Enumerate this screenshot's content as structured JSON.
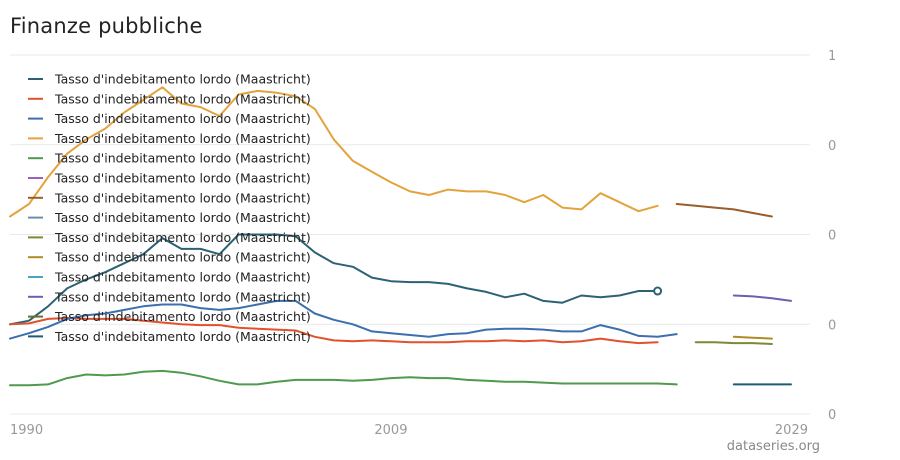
{
  "title": "Finanze pubbliche",
  "source": "dataseries.org",
  "colors": {
    "grid": "#e9e9e9",
    "tick": "#999999"
  },
  "chart_data": {
    "type": "line",
    "title": "Finanze pubbliche",
    "xlabel": "",
    "ylabel": "",
    "xlim": [
      1989,
      2031
    ],
    "ylim": [
      0,
      200
    ],
    "x_ticks": [
      1990,
      2009,
      2029
    ],
    "y_tick_labels": [
      "1",
      "0",
      "0",
      "0",
      "0"
    ],
    "grid": true,
    "legend_position": "top-left",
    "series": [
      {
        "name": "Tasso d'indebitamento lordo (Maastricht)",
        "color": "#2b6274",
        "points": [
          [
            1989,
            50
          ],
          [
            1990,
            52
          ],
          [
            1991,
            60
          ],
          [
            1992,
            70
          ],
          [
            1993,
            75
          ],
          [
            1994,
            79
          ],
          [
            1995,
            84
          ],
          [
            1996,
            89
          ],
          [
            1997,
            98
          ],
          [
            1998,
            92
          ],
          [
            1999,
            92
          ],
          [
            2000,
            89
          ],
          [
            2001,
            100
          ],
          [
            2002,
            100
          ],
          [
            2003,
            100
          ],
          [
            2004,
            99
          ],
          [
            2005,
            90
          ],
          [
            2006,
            84
          ],
          [
            2007,
            82
          ],
          [
            2008,
            76
          ],
          [
            2009,
            74
          ],
          [
            2010,
            73.5
          ],
          [
            2011,
            73.5
          ],
          [
            2012,
            72.5
          ],
          [
            2013,
            70
          ],
          [
            2014,
            68
          ],
          [
            2015,
            65
          ],
          [
            2016,
            67
          ],
          [
            2017,
            63
          ],
          [
            2018,
            62
          ],
          [
            2019,
            66
          ],
          [
            2020,
            65
          ],
          [
            2021,
            66
          ],
          [
            2022,
            68.5
          ],
          [
            2023,
            68.5
          ]
        ],
        "marker_last": true
      },
      {
        "name": "Tasso d'indebitamento lordo (Maastricht)",
        "color": "#e0512d",
        "points": [
          [
            1989,
            50
          ],
          [
            1990,
            50.5
          ],
          [
            1991,
            53
          ],
          [
            1992,
            53.5
          ],
          [
            1993,
            53
          ],
          [
            1994,
            53
          ],
          [
            1995,
            53
          ],
          [
            1996,
            52
          ],
          [
            1997,
            51
          ],
          [
            1998,
            50
          ],
          [
            1999,
            49.5
          ],
          [
            2000,
            49.5
          ],
          [
            2001,
            48
          ],
          [
            2002,
            47.5
          ],
          [
            2003,
            47
          ],
          [
            2004,
            46.5
          ],
          [
            2005,
            43
          ],
          [
            2006,
            41
          ],
          [
            2007,
            40.5
          ],
          [
            2008,
            41
          ],
          [
            2009,
            40.5
          ],
          [
            2010,
            40
          ],
          [
            2011,
            40
          ],
          [
            2012,
            40
          ],
          [
            2013,
            40.5
          ],
          [
            2014,
            40.5
          ],
          [
            2015,
            41
          ],
          [
            2016,
            40.5
          ],
          [
            2017,
            41
          ],
          [
            2018,
            40
          ],
          [
            2019,
            40.5
          ],
          [
            2020,
            42
          ],
          [
            2021,
            40.5
          ],
          [
            2022,
            39.5
          ],
          [
            2023,
            40
          ]
        ]
      },
      {
        "name": "Tasso d'indebitamento lordo (Maastricht)",
        "color": "#3b6fae",
        "points": [
          [
            1989,
            42
          ],
          [
            1990,
            45
          ],
          [
            1991,
            48.5
          ],
          [
            1992,
            53
          ],
          [
            1993,
            55
          ],
          [
            1994,
            56
          ],
          [
            1995,
            58
          ],
          [
            1996,
            60
          ],
          [
            1997,
            61
          ],
          [
            1998,
            61
          ],
          [
            1999,
            59
          ],
          [
            2000,
            58
          ],
          [
            2001,
            59
          ],
          [
            2002,
            61
          ],
          [
            2003,
            63
          ],
          [
            2004,
            63
          ],
          [
            2005,
            56
          ],
          [
            2006,
            52.5
          ],
          [
            2007,
            50
          ],
          [
            2008,
            46
          ],
          [
            2009,
            45
          ],
          [
            2010,
            44
          ],
          [
            2011,
            43
          ],
          [
            2012,
            44.5
          ],
          [
            2013,
            45
          ],
          [
            2014,
            47
          ],
          [
            2015,
            47.5
          ],
          [
            2016,
            47.5
          ],
          [
            2017,
            47
          ],
          [
            2018,
            46
          ],
          [
            2019,
            46
          ],
          [
            2020,
            49.5
          ],
          [
            2021,
            47
          ],
          [
            2022,
            43.5
          ],
          [
            2023,
            43
          ],
          [
            2024,
            44.5
          ]
        ]
      },
      {
        "name": "Tasso d'indebitamento lordo (Maastricht)",
        "color": "#e3a33b",
        "points": [
          [
            1989,
            110
          ],
          [
            1990,
            117
          ],
          [
            1991,
            132
          ],
          [
            1992,
            145
          ],
          [
            1993,
            153
          ],
          [
            1994,
            159
          ],
          [
            1995,
            168
          ],
          [
            1996,
            175
          ],
          [
            1997,
            182
          ],
          [
            1998,
            173
          ],
          [
            1999,
            171
          ],
          [
            2000,
            166
          ],
          [
            2001,
            178
          ],
          [
            2002,
            180
          ],
          [
            2003,
            179
          ],
          [
            2004,
            177
          ],
          [
            2005,
            170
          ],
          [
            2006,
            153
          ],
          [
            2007,
            141
          ],
          [
            2008,
            135
          ],
          [
            2009,
            129
          ],
          [
            2010,
            124
          ],
          [
            2011,
            122
          ],
          [
            2012,
            125
          ],
          [
            2013,
            124
          ],
          [
            2014,
            124
          ],
          [
            2015,
            122
          ],
          [
            2016,
            118
          ],
          [
            2017,
            122
          ],
          [
            2018,
            115
          ],
          [
            2019,
            114
          ],
          [
            2020,
            123
          ],
          [
            2021,
            118
          ],
          [
            2022,
            113
          ],
          [
            2023,
            116
          ]
        ]
      },
      {
        "name": "Tasso d'indebitamento lordo (Maastricht)",
        "color": "#4f9a4f",
        "points": [
          [
            1989,
            16
          ],
          [
            1990,
            16
          ],
          [
            1991,
            16.5
          ],
          [
            1992,
            20
          ],
          [
            1993,
            22
          ],
          [
            1994,
            21.5
          ],
          [
            1995,
            22
          ],
          [
            1996,
            23.5
          ],
          [
            1997,
            24
          ],
          [
            1998,
            23
          ],
          [
            1999,
            21
          ],
          [
            2000,
            18.5
          ],
          [
            2001,
            16.5
          ],
          [
            2002,
            16.5
          ],
          [
            2003,
            18
          ],
          [
            2004,
            19
          ],
          [
            2005,
            19
          ],
          [
            2006,
            19
          ],
          [
            2007,
            18.5
          ],
          [
            2008,
            19
          ],
          [
            2009,
            20
          ],
          [
            2010,
            20.5
          ],
          [
            2011,
            20
          ],
          [
            2012,
            20
          ],
          [
            2013,
            19
          ],
          [
            2014,
            18.5
          ],
          [
            2015,
            18
          ],
          [
            2016,
            18
          ],
          [
            2017,
            17.5
          ],
          [
            2018,
            17
          ],
          [
            2019,
            17
          ],
          [
            2020,
            17
          ],
          [
            2021,
            17
          ],
          [
            2022,
            17
          ],
          [
            2023,
            17
          ],
          [
            2024,
            16.5
          ]
        ]
      },
      {
        "name": "Tasso d'indebitamento lordo (Maastricht)",
        "color": "#9a63b8",
        "points": []
      },
      {
        "name": "Tasso d'indebitamento lordo (Maastricht)",
        "color": "#9a5d2c",
        "points": [
          [
            2024,
            117
          ],
          [
            2025,
            116
          ],
          [
            2026,
            115
          ],
          [
            2027,
            114
          ],
          [
            2028,
            112
          ],
          [
            2029,
            110
          ]
        ]
      },
      {
        "name": "Tasso d'indebitamento lordo (Maastricht)",
        "color": "#6e8ea8",
        "points": []
      },
      {
        "name": "Tasso d'indebitamento lordo (Maastricht)",
        "color": "#7a8a36",
        "points": [
          [
            2025,
            40
          ],
          [
            2026,
            40
          ],
          [
            2027,
            39.5
          ],
          [
            2028,
            39.5
          ],
          [
            2029,
            39
          ]
        ]
      },
      {
        "name": "Tasso d'indebitamento lordo (Maastricht)",
        "color": "#b08a26",
        "points": [
          [
            2027,
            43
          ],
          [
            2028,
            42.5
          ],
          [
            2029,
            42
          ]
        ]
      },
      {
        "name": "Tasso d'indebitamento lordo (Maastricht)",
        "color": "#4aa3c0",
        "points": []
      },
      {
        "name": "Tasso d'indebitamento lordo (Maastricht)",
        "color": "#6d5fb0",
        "points": [
          [
            2027,
            66
          ],
          [
            2028,
            65.5
          ],
          [
            2029,
            64.5
          ],
          [
            2030,
            63
          ]
        ]
      },
      {
        "name": "Tasso d'indebitamento lordo (Maastricht)",
        "color": "#6a6e2a",
        "points": []
      },
      {
        "name": "Tasso d'indebitamento lordo (Maastricht)",
        "color": "#1f5a78",
        "points": [
          [
            2027,
            16.5
          ],
          [
            2028,
            16.5
          ],
          [
            2029,
            16.5
          ],
          [
            2030,
            16.5
          ]
        ]
      }
    ]
  }
}
